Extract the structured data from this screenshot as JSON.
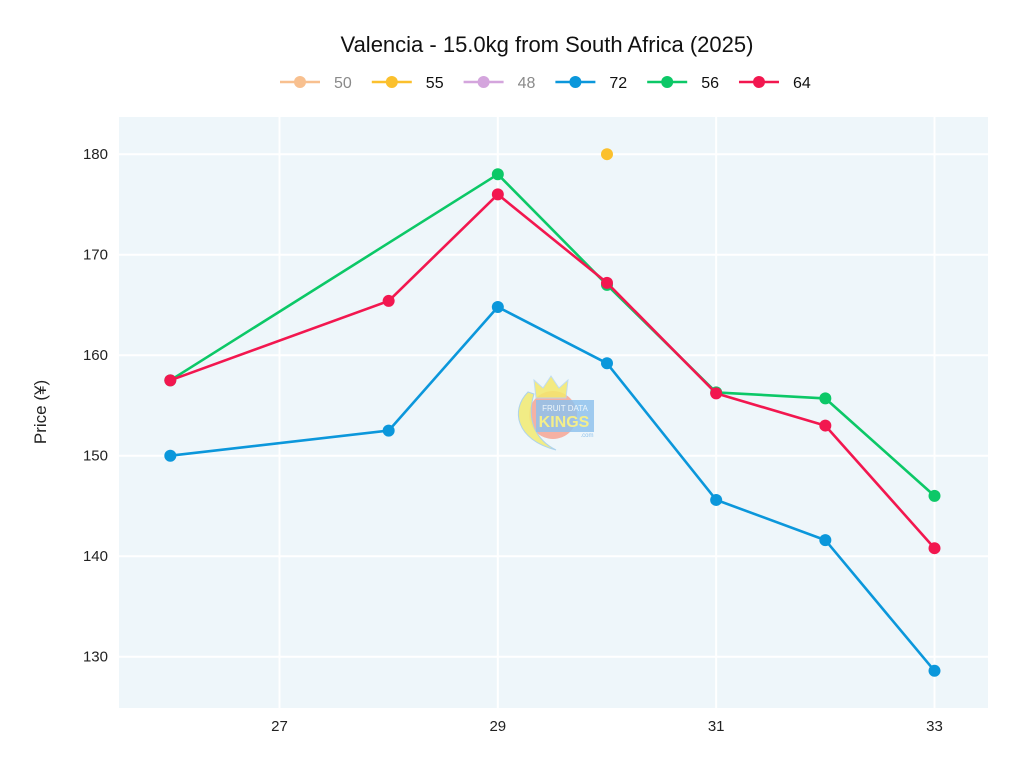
{
  "chart_data": {
    "type": "line",
    "title": "Valencia - 15.0kg from South Africa (2025)",
    "xlabel": "",
    "ylabel": "Price (¥)",
    "xlim": [
      25.53,
      33.49
    ],
    "ylim": [
      124.9,
      183.7
    ],
    "x_ticks": [
      27,
      29,
      31,
      33
    ],
    "y_ticks": [
      130,
      140,
      150,
      160,
      170,
      180
    ],
    "grid": true,
    "legend_position": "top",
    "series": [
      {
        "name": "50",
        "color": "#F8C08F",
        "legend_active": false,
        "points": []
      },
      {
        "name": "55",
        "color": "#FBC02D",
        "legend_active": true,
        "points": [
          [
            30,
            180
          ]
        ]
      },
      {
        "name": "48",
        "color": "#D4A5DD",
        "legend_active": false,
        "points": []
      },
      {
        "name": "72",
        "color": "#0B97DB",
        "legend_active": true,
        "points": [
          [
            26,
            150.0
          ],
          [
            28,
            152.5
          ],
          [
            29,
            164.8
          ],
          [
            30,
            159.2
          ],
          [
            31,
            145.6
          ],
          [
            32,
            141.6
          ],
          [
            33,
            128.6
          ]
        ]
      },
      {
        "name": "56",
        "color": "#0CC867",
        "legend_active": true,
        "points": [
          [
            26,
            157.5
          ],
          [
            29,
            178.0
          ],
          [
            30,
            167.0
          ],
          [
            31,
            156.3
          ],
          [
            32,
            155.7
          ],
          [
            33,
            146.0
          ]
        ]
      },
      {
        "name": "64",
        "color": "#F2174F",
        "legend_active": true,
        "points": [
          [
            26,
            157.5
          ],
          [
            28,
            165.4
          ],
          [
            29,
            176.0
          ],
          [
            30,
            167.2
          ],
          [
            31,
            156.2
          ],
          [
            32,
            153.0
          ],
          [
            33,
            140.8
          ]
        ]
      }
    ],
    "watermark": {
      "line1": "FRUIT DATA",
      "line2": "KINGS",
      "line3": ".com"
    }
  },
  "colors": {
    "plot_bg": "#EEF6FA",
    "grid": "#FFFFFF",
    "legend_inactive_text": "#8A8A8A",
    "legend_active_text": "#111111"
  }
}
